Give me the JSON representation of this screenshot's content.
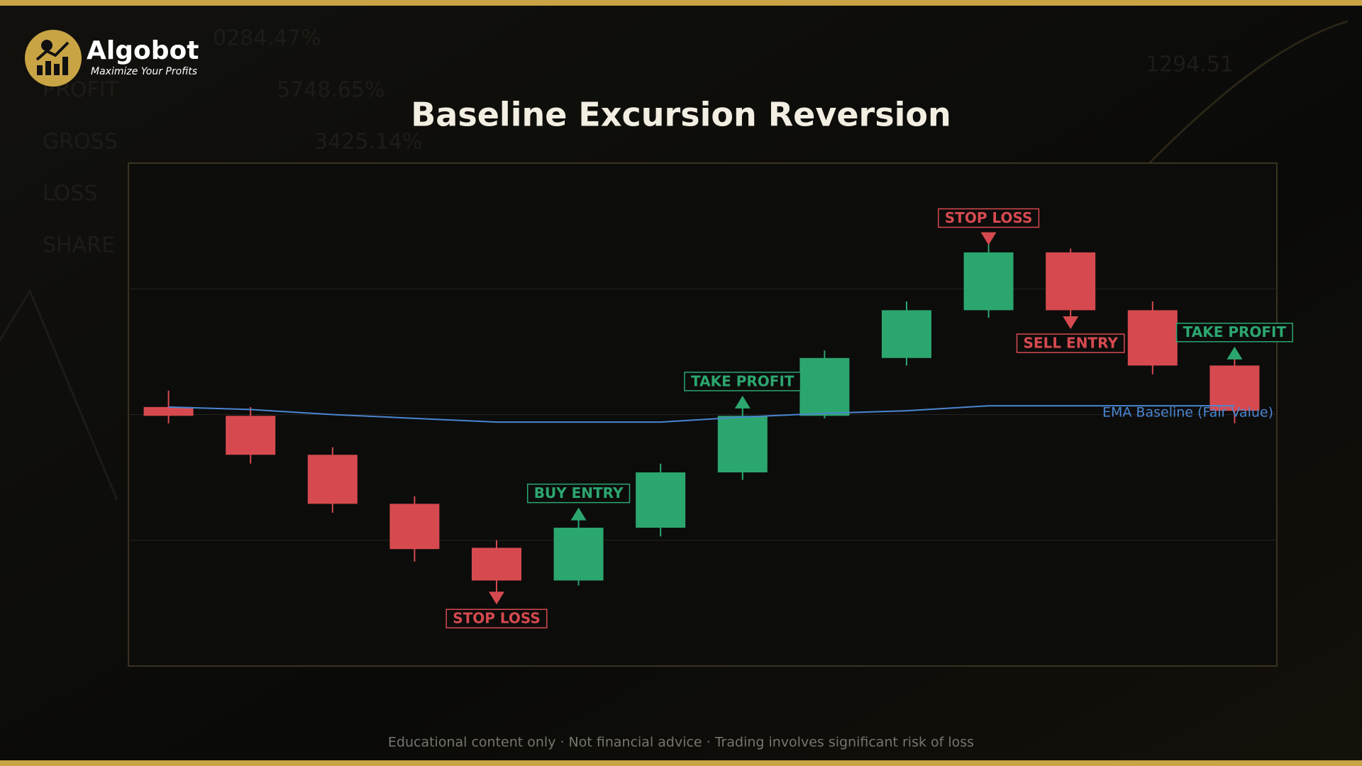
{
  "brand": {
    "name": "Algobot",
    "tagline": "Maximize Your Profits"
  },
  "background_text": [
    "0284.47%",
    "PROFIT",
    "5748.65%",
    "GROSS",
    "3425.14%",
    "LOSS",
    "SHARE",
    "1294.51"
  ],
  "footer": "Educational content only  ·  Not financial advice  ·  Trading involves significant risk of loss",
  "chart_data": {
    "type": "candlestick",
    "title": "Baseline Excursion Reversion",
    "ylim": [
      0,
      4
    ],
    "grid_values": [
      1,
      2,
      3
    ],
    "up_color": "#2ca66f",
    "down_color": "#d64a4f",
    "open": [
      2.06,
      1.99,
      1.68,
      1.29,
      0.94,
      0.68,
      1.1,
      1.54,
      1.99,
      2.45,
      2.83,
      3.29,
      2.83,
      2.39
    ],
    "high": [
      2.19,
      2.06,
      1.74,
      1.35,
      1.0,
      1.17,
      1.61,
      2.06,
      2.51,
      2.9,
      3.36,
      3.32,
      2.9,
      2.45
    ],
    "low": [
      1.93,
      1.61,
      1.22,
      0.83,
      0.58,
      0.64,
      1.03,
      1.48,
      1.97,
      2.39,
      2.77,
      2.77,
      2.32,
      1.93
    ],
    "close": [
      1.99,
      1.68,
      1.29,
      0.93,
      0.68,
      1.1,
      1.54,
      1.99,
      2.45,
      2.83,
      3.29,
      2.83,
      2.39,
      2.03
    ],
    "ema": {
      "name": "EMA Baseline (Fair Value)",
      "color": "#4a86d0",
      "values": [
        2.06,
        2.04,
        2.0,
        1.97,
        1.94,
        1.94,
        1.94,
        1.98,
        2.01,
        2.03,
        2.07,
        2.07,
        2.07,
        2.07
      ]
    },
    "annotations": [
      {
        "text": "STOP LOSS",
        "candle": 4,
        "side": "below",
        "color": "#d64a4f"
      },
      {
        "text": "BUY ENTRY",
        "candle": 5,
        "side": "above",
        "color": "#2ca66f"
      },
      {
        "text": "TAKE PROFIT",
        "candle": 7,
        "side": "above",
        "color": "#2ca66f"
      },
      {
        "text": "STOP LOSS",
        "candle": 10,
        "side": "above",
        "color": "#d64a4f"
      },
      {
        "text": "SELL ENTRY",
        "candle": 11,
        "side": "below",
        "color": "#d64a4f"
      },
      {
        "text": "TAKE PROFIT",
        "candle": 13,
        "side": "above",
        "color": "#2ca66f"
      }
    ]
  }
}
